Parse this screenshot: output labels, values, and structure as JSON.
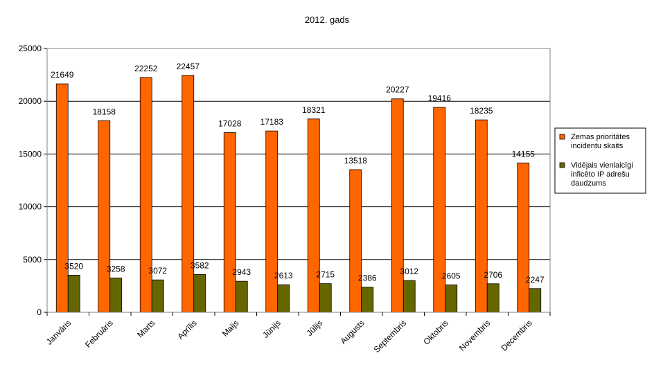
{
  "chart_data": {
    "type": "bar",
    "title": "2012. gads",
    "categories": [
      "Janvāris",
      "Februāris",
      "Marts",
      "Aprīlis",
      "Maijs",
      "Jūnijs",
      "Jūlijs",
      "Augusts",
      "Septembris",
      "Oktobris",
      "Novembris",
      "Decembris"
    ],
    "series": [
      {
        "name": "Zemas prioritātes incidentu skaits",
        "color": "#ff6600",
        "values": [
          21649,
          18158,
          22252,
          22457,
          17028,
          17183,
          18321,
          13518,
          20227,
          19416,
          18235,
          14155
        ]
      },
      {
        "name": "Vidējais vienlaicīgi inficēto IP adrešu daudzums",
        "color": "#666600",
        "values": [
          3520,
          3258,
          3072,
          3582,
          2943,
          2613,
          2715,
          2386,
          3012,
          2605,
          2706,
          2247
        ]
      }
    ],
    "ylim": [
      0,
      25000
    ],
    "yticks": [
      "0",
      "5000",
      "10000",
      "15000",
      "20000",
      "25000"
    ],
    "grid": true,
    "legend_position": "right",
    "legend_lines": [
      [
        "Zemas prioritātes",
        "incidentu skaits"
      ],
      [
        "Vidējais vienlaicīgi",
        "inficēto IP adrešu",
        "daudzums"
      ]
    ]
  }
}
